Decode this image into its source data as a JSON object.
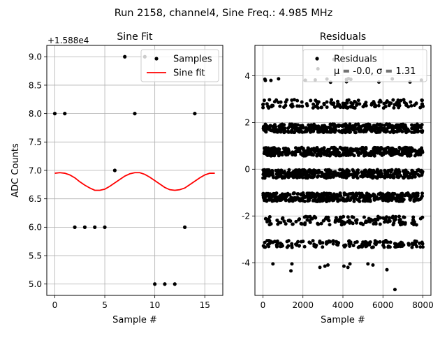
{
  "figure": {
    "suptitle": "Run 2158, channel4, Sine Freq.: 4.985 MHz"
  },
  "colors": {
    "points": "#000000",
    "fit": "#ff0000",
    "grid": "#b0b0b0"
  },
  "chart_data": [
    {
      "type": "scatter",
      "title": "Sine Fit",
      "xlabel": "Sample #",
      "ylabel": "ADC Counts",
      "offset_label": "+1.588e4",
      "xlim": [
        -0.8,
        16.8
      ],
      "ylim": [
        4.8,
        9.2
      ],
      "xticks": [
        0,
        5,
        10,
        15
      ],
      "yticks": [
        5.0,
        5.5,
        6.0,
        6.5,
        7.0,
        7.5,
        8.0,
        8.5,
        9.0
      ],
      "ytick_labels": [
        "5.0",
        "5.5",
        "6.0",
        "6.5",
        "7.0",
        "7.5",
        "8.0",
        "8.5",
        "9.0"
      ],
      "grid": true,
      "legend": {
        "placement": "upper-right",
        "entries": [
          "Samples",
          "Sine fit"
        ]
      },
      "series": [
        {
          "name": "Samples",
          "kind": "points",
          "x": [
            0,
            1,
            2,
            3,
            4,
            5,
            6,
            7,
            8,
            9,
            10,
            11,
            12,
            13,
            14
          ],
          "y": [
            8,
            8,
            6,
            6,
            6,
            6,
            7,
            9,
            8,
            9,
            5,
            5,
            5,
            6,
            8
          ]
        },
        {
          "name": "Sine fit",
          "kind": "line",
          "x": [
            0,
            0.5,
            1,
            1.5,
            2,
            2.5,
            3,
            3.5,
            4,
            4.5,
            5,
            5.5,
            6,
            6.5,
            7,
            7.5,
            8,
            8.5,
            9,
            9.5,
            10,
            10.5,
            11,
            11.5,
            12,
            12.5,
            13,
            13.5,
            14,
            14.5,
            15,
            15.5,
            16
          ],
          "y": [
            6.95,
            6.96,
            6.95,
            6.92,
            6.87,
            6.8,
            6.74,
            6.69,
            6.65,
            6.65,
            6.67,
            6.72,
            6.78,
            6.84,
            6.9,
            6.94,
            6.96,
            6.96,
            6.93,
            6.88,
            6.82,
            6.76,
            6.7,
            6.66,
            6.65,
            6.66,
            6.69,
            6.75,
            6.81,
            6.87,
            6.92,
            6.95,
            6.95
          ]
        }
      ]
    },
    {
      "type": "scatter",
      "title": "Residuals",
      "xlabel": "Sample #",
      "ylabel": "",
      "xlim": [
        -400,
        8400
      ],
      "ylim": [
        -5.4,
        5.3
      ],
      "xticks": [
        0,
        2000,
        4000,
        6000,
        8000
      ],
      "yticks": [
        -4,
        -2,
        0,
        2,
        4
      ],
      "grid": true,
      "legend": {
        "placement": "upper-right",
        "entries": [
          "Residuals",
          "μ = -0.0, σ = 1.31"
        ]
      },
      "stats": {
        "mu": -0.0,
        "sigma": 1.31
      },
      "series": [
        {
          "name": "Residuals",
          "kind": "points",
          "sample_count": 8000,
          "bands": [
            {
              "y": 3.8,
              "spread": 0.08,
              "density": "sparse"
            },
            {
              "y": 2.8,
              "spread": 0.18,
              "density": "medium"
            },
            {
              "y": 1.75,
              "spread": 0.18,
              "density": "dense"
            },
            {
              "y": 0.75,
              "spread": 0.18,
              "density": "dense"
            },
            {
              "y": -0.2,
              "spread": 0.18,
              "density": "dense"
            },
            {
              "y": -1.2,
              "spread": 0.18,
              "density": "dense"
            },
            {
              "y": -2.2,
              "spread": 0.18,
              "density": "medium"
            },
            {
              "y": -3.2,
              "spread": 0.15,
              "density": "medium"
            }
          ],
          "outliers": [
            {
              "x": 100,
              "y": 3.85
            },
            {
              "x": 400,
              "y": 3.8
            },
            {
              "x": 2750,
              "y": 4.3
            },
            {
              "x": 3550,
              "y": 4.7
            },
            {
              "x": 500,
              "y": -4.05
            },
            {
              "x": 1400,
              "y": -4.35
            },
            {
              "x": 1450,
              "y": -4.05
            },
            {
              "x": 2850,
              "y": -4.2
            },
            {
              "x": 3100,
              "y": -4.15
            },
            {
              "x": 3250,
              "y": -4.1
            },
            {
              "x": 4050,
              "y": -4.15
            },
            {
              "x": 4250,
              "y": -4.2
            },
            {
              "x": 4350,
              "y": -4.05
            },
            {
              "x": 5250,
              "y": -4.05
            },
            {
              "x": 5500,
              "y": -4.1
            },
            {
              "x": 6200,
              "y": -4.3
            },
            {
              "x": 6600,
              "y": -5.15
            }
          ]
        }
      ]
    }
  ]
}
